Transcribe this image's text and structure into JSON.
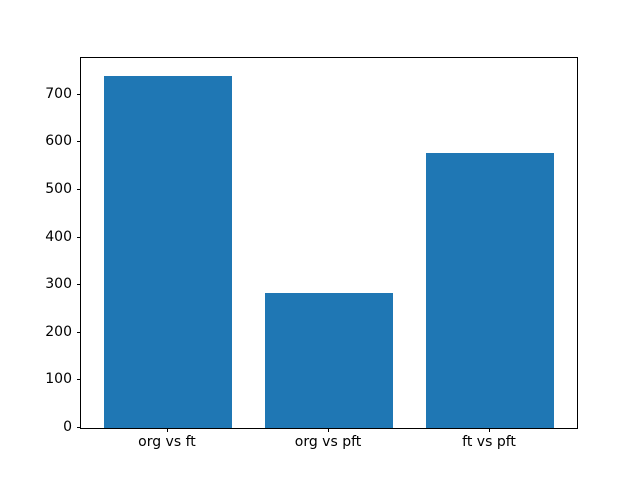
{
  "chart_data": {
    "type": "bar",
    "categories": [
      "org vs ft",
      "org vs pft",
      "ft vs pft"
    ],
    "values": [
      740,
      283,
      578
    ],
    "title": "",
    "xlabel": "",
    "ylabel": "",
    "yticks": [
      0,
      100,
      200,
      300,
      400,
      500,
      600,
      700
    ],
    "ylim": [
      0,
      777
    ],
    "xlim": [
      -0.54,
      2.54
    ],
    "bar_width_units": 0.8,
    "grid": false,
    "legend": null,
    "bar_color": "#1f77b4",
    "spine_color": "#000000",
    "background_color": "#ffffff"
  }
}
